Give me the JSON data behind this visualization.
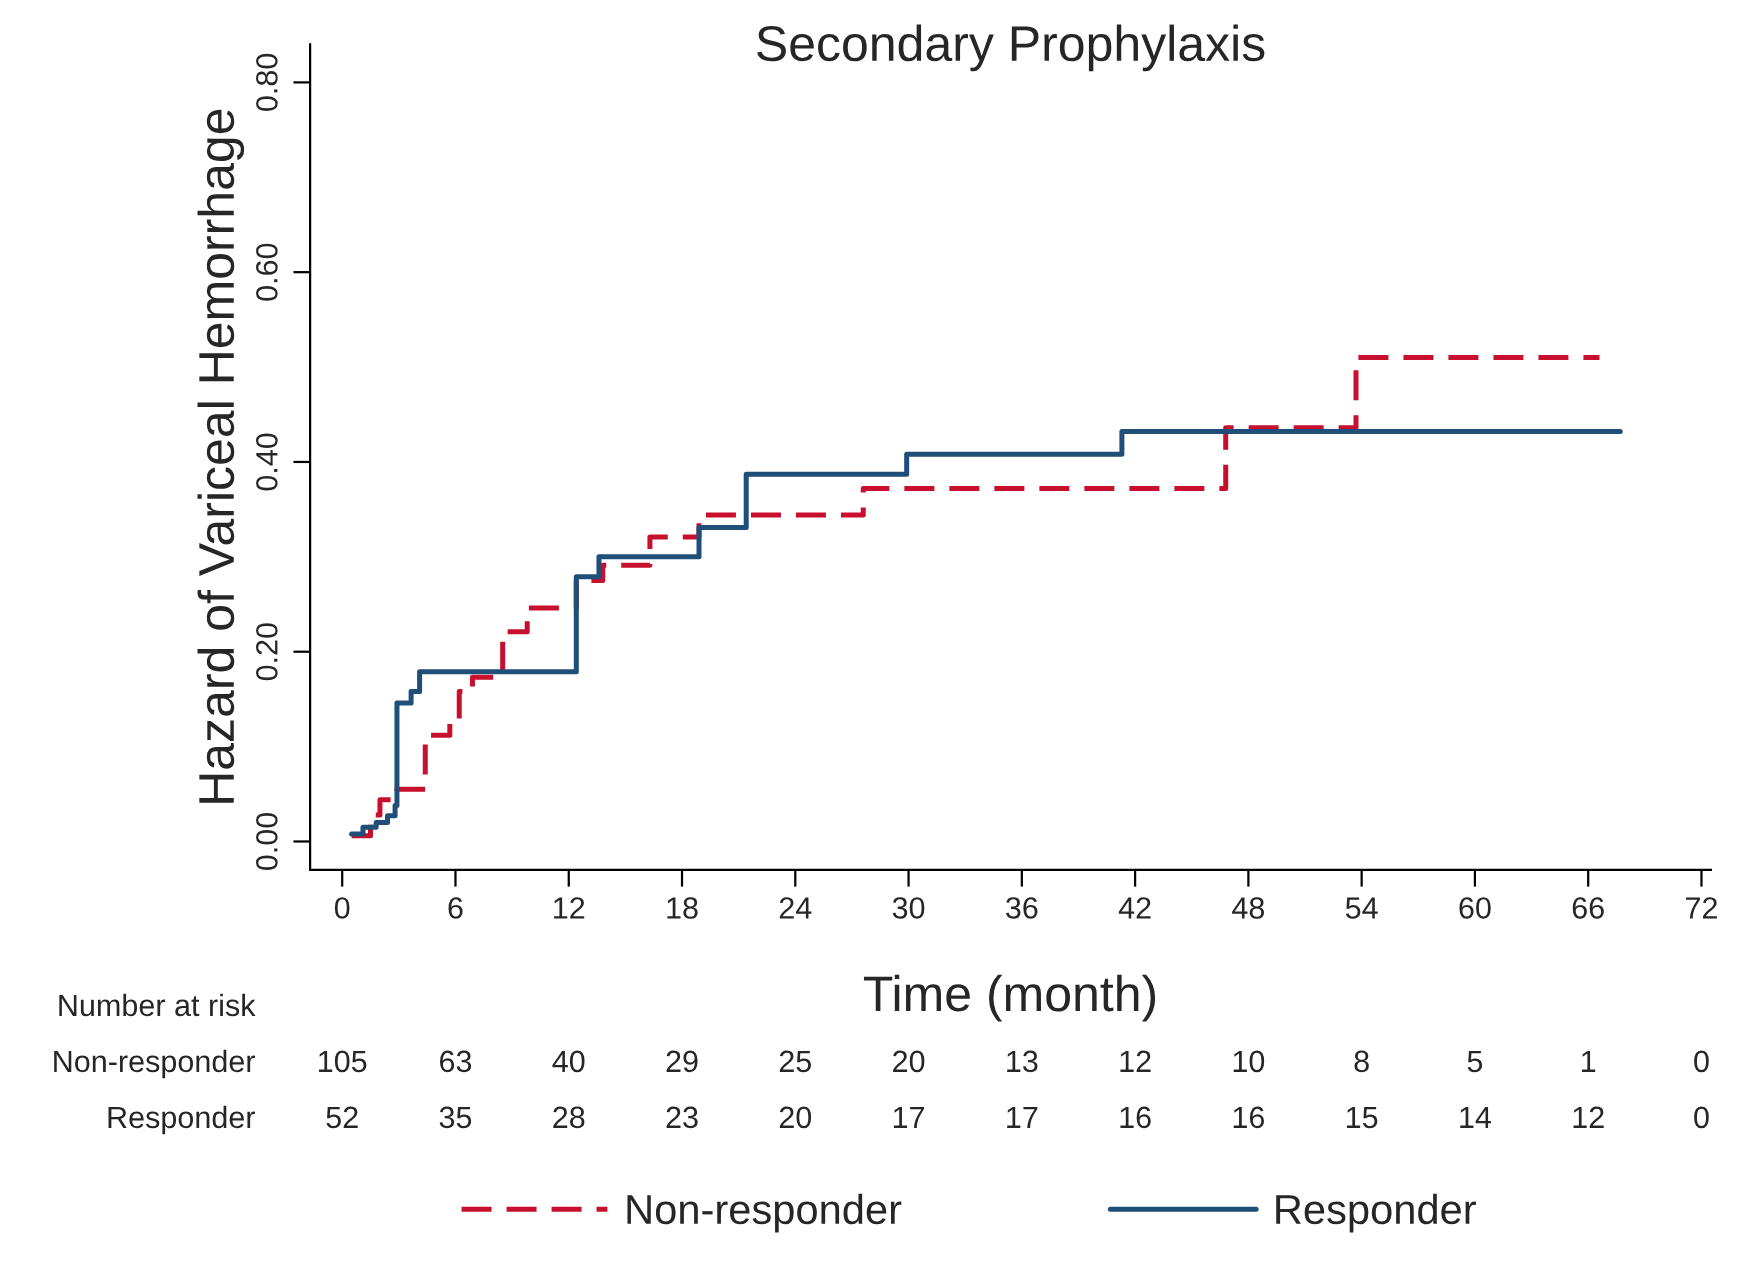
{
  "chart_data": {
    "type": "step",
    "title": "Secondary Prophylaxis",
    "xlabel": "Time (month)",
    "ylabel": "Hazard of Variceal Hemorrhage",
    "xlim": [
      -1.7,
      72.5
    ],
    "xticks": [
      0,
      6,
      12,
      18,
      24,
      30,
      36,
      42,
      48,
      54,
      60,
      66,
      72
    ],
    "ylim": [
      -0.03,
      0.84
    ],
    "yticks": [
      {
        "value": 0,
        "label": "0.00"
      },
      {
        "value": 0.2,
        "label": "0.20"
      },
      {
        "value": 0.4,
        "label": "0.40"
      },
      {
        "value": 0.6,
        "label": "0.60"
      },
      {
        "value": 0.8,
        "label": "0.80"
      }
    ],
    "grid": false,
    "legend": "bottom",
    "series": [
      {
        "name": "Non-responder",
        "color": "#c8102e",
        "line_style": "dashed",
        "x": [
          0.5,
          1.5,
          2.0,
          2.9,
          4.4,
          5.7,
          6.2,
          6.9,
          8.5,
          9.8,
          12.4,
          13.8,
          16.3,
          18.9,
          27.6,
          46.8,
          53.7,
          66.6
        ],
        "values": [
          0.006,
          0.028,
          0.044,
          0.055,
          0.112,
          0.126,
          0.158,
          0.173,
          0.221,
          0.246,
          0.275,
          0.291,
          0.321,
          0.344,
          0.372,
          0.436,
          0.51,
          0.51
        ]
      },
      {
        "name": "Responder",
        "color": "#1f4e79",
        "line_style": "solid",
        "x": [
          0.5,
          1.1,
          1.8,
          2.4,
          2.8,
          2.9,
          3.65,
          4.1,
          12.4,
          13.6,
          18.9,
          21.4,
          29.9,
          41.3,
          67.7
        ],
        "values": [
          0.008,
          0.015,
          0.02,
          0.027,
          0.038,
          0.146,
          0.158,
          0.179,
          0.279,
          0.3,
          0.331,
          0.387,
          0.408,
          0.432,
          0.432
        ]
      }
    ],
    "annotations": [
      "Number at risk",
      "Non-responder",
      "105",
      "63",
      "40",
      "29",
      "25",
      "20",
      "13",
      "12",
      "10",
      "8",
      "5",
      "1",
      "0",
      "Responder",
      "52",
      "35",
      "28",
      "23",
      "20",
      "17",
      "17",
      "16",
      "16",
      "15",
      "14",
      "12",
      "0"
    ]
  }
}
